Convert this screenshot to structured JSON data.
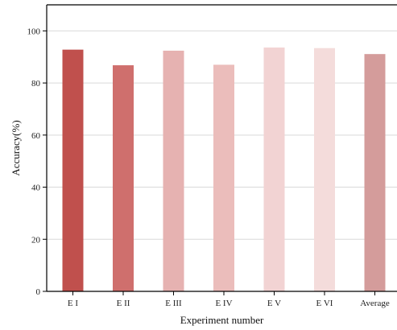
{
  "chart_data": {
    "type": "bar",
    "categories": [
      "E I",
      "E II",
      "E III",
      "E IV",
      "E V",
      "E VI",
      "Average"
    ],
    "values": [
      92.8,
      86.8,
      92.4,
      87.0,
      93.6,
      93.4,
      91.1
    ],
    "colors": [
      "#c0504d",
      "#cf6f6d",
      "#e6b2b1",
      "#ebbdbb",
      "#f2d3d3",
      "#f4dcdb",
      "#d49c9b"
    ],
    "xlabel": "Experiment number",
    "ylabel": "Accuracy(%)",
    "ylim": [
      0,
      110
    ],
    "yticks": [
      0,
      20,
      40,
      60,
      80,
      100
    ],
    "grid": true,
    "grid_color": "#d9d9d9",
    "axis_color": "#000000"
  }
}
